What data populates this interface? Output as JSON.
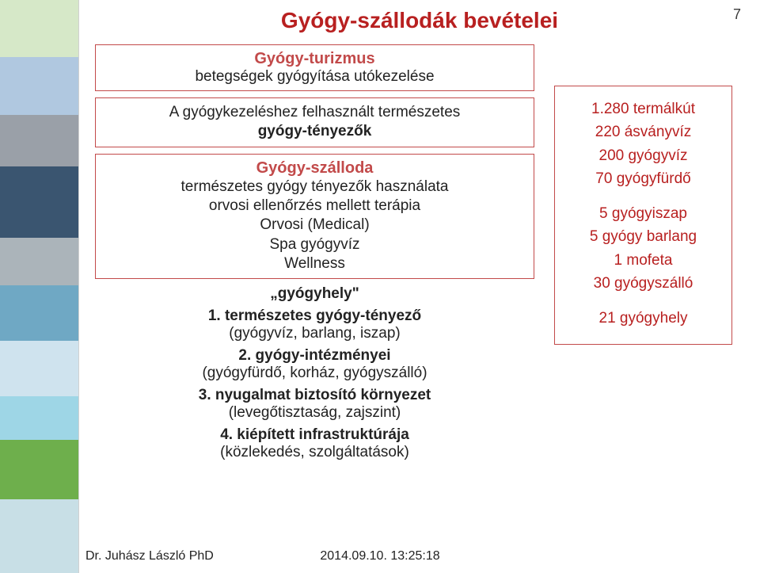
{
  "colors": {
    "title": "#b82020",
    "box_border": "#c24a4a",
    "section_heading": "#c24a4a",
    "body_text": "#222222",
    "right_text": "#b82020"
  },
  "page_number": "7",
  "title": "Gyógy-szállodák bevételei",
  "main": {
    "box1": {
      "heading": "Gyógy-turizmus",
      "sub": "betegségek  gyógyítása utókezelése"
    },
    "box2": {
      "line1": "A gyógykezeléshez felhasznált természetes",
      "line2": "gyógy-tényezők"
    },
    "box3": {
      "heading": "Gyógy-szálloda",
      "l1": "természetes gyógy tényezők használata",
      "l2": "orvosi ellenőrzés mellett terápia",
      "l3": "Orvosi (Medical)",
      "l4": "Spa gyógyvíz",
      "l5": "Wellness"
    },
    "block4": {
      "head": "„gyógyhely\"",
      "n1": "1. természetes gyógy-tényező",
      "p1": "(gyógyvíz, barlang, iszap)",
      "n2": "2. gyógy-intézményei",
      "p2": "(gyógyfürdő, korház, gyógyszálló)",
      "n3": "3. nyugalmat biztosító környezet",
      "p3": "(levegőtisztaság, zajszint)",
      "n4": "4. kiépített infrastruktúrája",
      "p4": "(közlekedés, szolgáltatások)"
    }
  },
  "right": {
    "r1": "1.280 termálkút",
    "r2": "220 ásványvíz",
    "r3": "200 gyógyvíz",
    "r4": "70 gyógyfürdő",
    "r5": "5 gyógyiszap",
    "r6": "5 gyógy barlang",
    "r7": "1 mofeta",
    "r8": "30 gyógyszálló",
    "r9": "21 gyógyhely"
  },
  "footer": {
    "author": "Dr. Juhász László PhD",
    "timestamp": "2014.09.10. 13:25:18"
  }
}
